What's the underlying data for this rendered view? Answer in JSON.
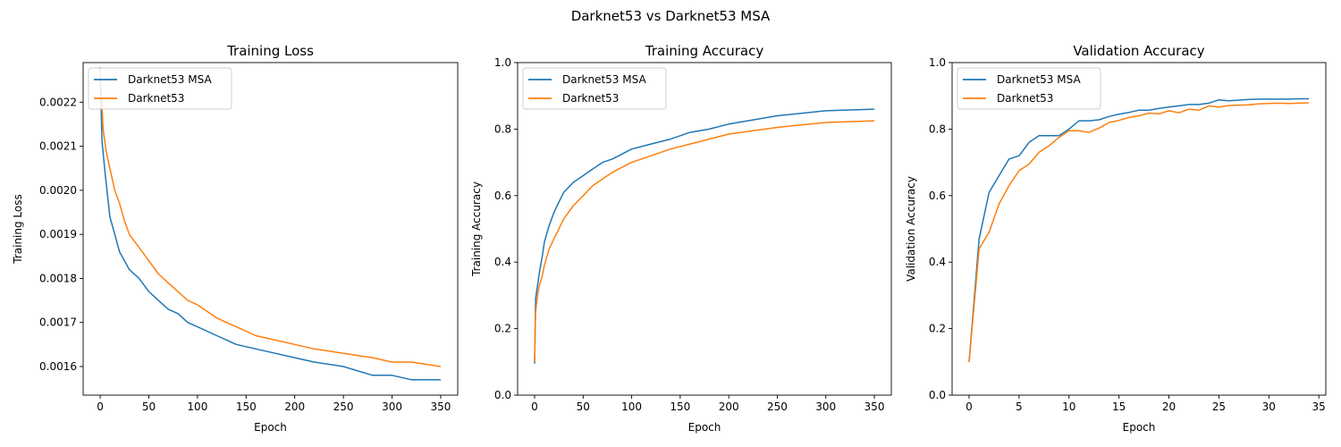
{
  "figure": {
    "suptitle": "Darknet53 vs Darknet53 MSA"
  },
  "colors": {
    "msa": "#1f77b4",
    "base": "#ff7f0e"
  },
  "chart_data": [
    {
      "type": "line",
      "title": "Training Loss",
      "xlabel": "Epoch",
      "ylabel": "Training Loss",
      "xlim": [
        -17.5,
        367.5
      ],
      "ylim": [
        0.001535,
        0.00229
      ],
      "xticks": [
        0,
        50,
        100,
        150,
        200,
        250,
        300,
        350
      ],
      "yticks": [
        0.0016,
        0.0017,
        0.0018,
        0.0019,
        0.002,
        0.0021,
        0.0022
      ],
      "ytick_labels": [
        "0.0016",
        "0.0017",
        "0.0018",
        "0.0019",
        "0.0020",
        "0.0021",
        "0.0022"
      ],
      "legend_placement": "upper-left",
      "grid": false,
      "series": [
        {
          "name": "Darknet53 MSA",
          "color": "#1f77b4",
          "x": [
            0,
            2,
            5,
            10,
            15,
            20,
            25,
            30,
            40,
            50,
            60,
            70,
            80,
            90,
            100,
            120,
            140,
            160,
            180,
            200,
            220,
            250,
            280,
            300,
            320,
            350
          ],
          "y": [
            0.00226,
            0.00211,
            0.00204,
            0.00194,
            0.0019,
            0.00186,
            0.00184,
            0.00182,
            0.0018,
            0.00177,
            0.00175,
            0.00173,
            0.00172,
            0.0017,
            0.00169,
            0.00167,
            0.00165,
            0.00164,
            0.00163,
            0.00162,
            0.00161,
            0.0016,
            0.00158,
            0.00158,
            0.00157,
            0.00157
          ]
        },
        {
          "name": "Darknet53",
          "color": "#ff7f0e",
          "x": [
            0,
            3,
            6,
            10,
            15,
            20,
            25,
            30,
            40,
            50,
            60,
            70,
            80,
            90,
            100,
            120,
            140,
            160,
            180,
            200,
            220,
            250,
            280,
            300,
            320,
            350
          ],
          "y": [
            0.00228,
            0.00214,
            0.00209,
            0.00205,
            0.002,
            0.00197,
            0.00193,
            0.0019,
            0.00187,
            0.00184,
            0.00181,
            0.00179,
            0.00177,
            0.00175,
            0.00174,
            0.00171,
            0.00169,
            0.00167,
            0.00166,
            0.00165,
            0.00164,
            0.00163,
            0.00162,
            0.00161,
            0.00161,
            0.0016
          ]
        }
      ]
    },
    {
      "type": "line",
      "title": "Training Accuracy",
      "xlabel": "Epoch",
      "ylabel": "Training Accuracy",
      "xlim": [
        -17.5,
        367.5
      ],
      "ylim": [
        0,
        1
      ],
      "xticks": [
        0,
        50,
        100,
        150,
        200,
        250,
        300,
        350
      ],
      "yticks": [
        0,
        0.2,
        0.4,
        0.6,
        0.8,
        1
      ],
      "ytick_labels": [
        "0.0",
        "0.2",
        "0.4",
        "0.6",
        "0.8",
        "1.0"
      ],
      "legend_placement": "upper-left",
      "grid": false,
      "series": [
        {
          "name": "Darknet53 MSA",
          "color": "#1f77b4",
          "x": [
            0,
            1,
            3,
            5,
            8,
            10,
            13,
            15,
            20,
            25,
            30,
            40,
            50,
            60,
            70,
            80,
            100,
            120,
            140,
            160,
            180,
            200,
            250,
            300,
            350
          ],
          "y": [
            0.095,
            0.29,
            0.33,
            0.37,
            0.42,
            0.46,
            0.49,
            0.51,
            0.55,
            0.58,
            0.61,
            0.64,
            0.66,
            0.68,
            0.7,
            0.71,
            0.74,
            0.755,
            0.77,
            0.79,
            0.8,
            0.815,
            0.84,
            0.855,
            0.86
          ]
        },
        {
          "name": "Darknet53",
          "color": "#ff7f0e",
          "x": [
            0,
            1,
            3,
            5,
            8,
            10,
            13,
            15,
            20,
            25,
            30,
            40,
            50,
            60,
            70,
            80,
            100,
            120,
            140,
            160,
            180,
            200,
            250,
            300,
            350
          ],
          "y": [
            0.1,
            0.25,
            0.3,
            0.33,
            0.36,
            0.39,
            0.42,
            0.44,
            0.47,
            0.5,
            0.53,
            0.57,
            0.6,
            0.63,
            0.65,
            0.67,
            0.7,
            0.72,
            0.74,
            0.755,
            0.77,
            0.785,
            0.805,
            0.82,
            0.825
          ]
        }
      ]
    },
    {
      "type": "line",
      "title": "Validation Accuracy",
      "xlabel": "Epoch",
      "ylabel": "Validation Accuracy",
      "xlim": [
        -1.7,
        35.7
      ],
      "ylim": [
        0,
        1
      ],
      "xticks": [
        0,
        5,
        10,
        15,
        20,
        25,
        30,
        35
      ],
      "yticks": [
        0,
        0.2,
        0.4,
        0.6,
        0.8,
        1
      ],
      "ytick_labels": [
        "0.0",
        "0.2",
        "0.4",
        "0.6",
        "0.8",
        "1.0"
      ],
      "legend_placement": "upper-left",
      "grid": false,
      "series": [
        {
          "name": "Darknet53 MSA",
          "color": "#1f77b4",
          "x": [
            0,
            1,
            2,
            3,
            4,
            5,
            6,
            7,
            8,
            9,
            10,
            11,
            12,
            13,
            14,
            15,
            16,
            17,
            18,
            19,
            20,
            21,
            22,
            23,
            24,
            25,
            26,
            27,
            28,
            29,
            30,
            31,
            32,
            33,
            34
          ],
          "y": [
            0.1,
            0.47,
            0.61,
            0.66,
            0.71,
            0.72,
            0.76,
            0.78,
            0.78,
            0.78,
            0.8,
            0.825,
            0.825,
            0.828,
            0.838,
            0.845,
            0.85,
            0.857,
            0.857,
            0.862,
            0.866,
            0.87,
            0.874,
            0.874,
            0.878,
            0.888,
            0.885,
            0.887,
            0.889,
            0.89,
            0.89,
            0.89,
            0.89,
            0.891,
            0.891
          ]
        },
        {
          "name": "Darknet53",
          "color": "#ff7f0e",
          "x": [
            0,
            1,
            2,
            3,
            4,
            5,
            6,
            7,
            8,
            9,
            10,
            11,
            12,
            13,
            14,
            15,
            16,
            17,
            18,
            19,
            20,
            21,
            22,
            23,
            24,
            25,
            26,
            27,
            28,
            29,
            30,
            31,
            32,
            33,
            34
          ],
          "y": [
            0.1,
            0.44,
            0.49,
            0.575,
            0.63,
            0.675,
            0.695,
            0.73,
            0.75,
            0.775,
            0.795,
            0.795,
            0.79,
            0.803,
            0.82,
            0.826,
            0.835,
            0.84,
            0.848,
            0.846,
            0.855,
            0.849,
            0.86,
            0.857,
            0.87,
            0.866,
            0.871,
            0.872,
            0.873,
            0.876,
            0.877,
            0.878,
            0.877,
            0.878,
            0.879
          ]
        }
      ]
    }
  ]
}
